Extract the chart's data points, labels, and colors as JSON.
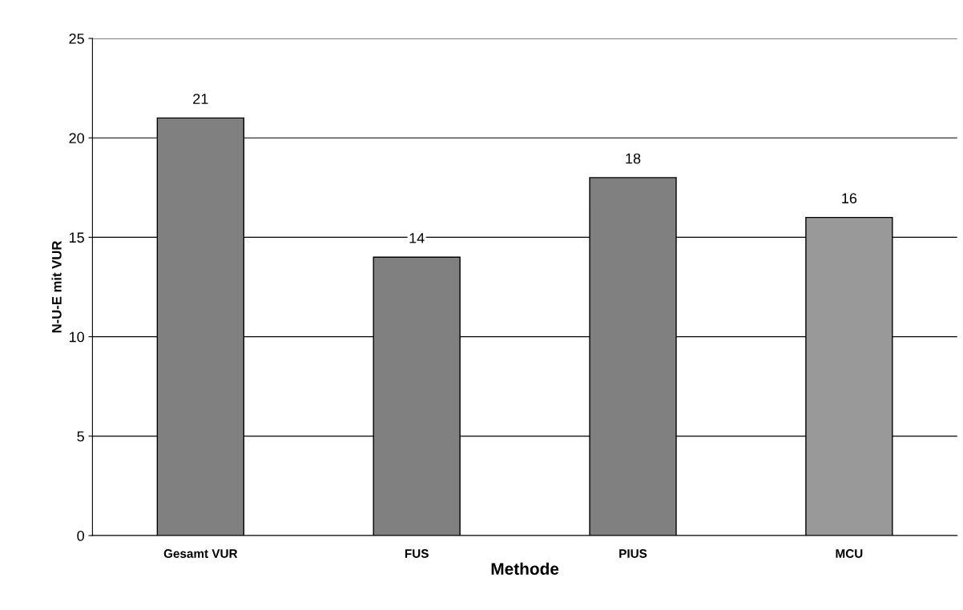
{
  "chart_data": {
    "type": "bar",
    "xlabel": "Methode",
    "ylabel": "N-U-E mit VUR",
    "categories": [
      "Gesamt VUR",
      "FUS",
      "PIUS",
      "MCU"
    ],
    "values": [
      21,
      14,
      18,
      16
    ],
    "colors": [
      "#808080",
      "#808080",
      "#808080",
      "#999999"
    ],
    "ylim": [
      0,
      25
    ],
    "yticks": [
      0,
      5,
      10,
      15,
      20,
      25
    ],
    "grid": "y",
    "data_labels": true
  }
}
